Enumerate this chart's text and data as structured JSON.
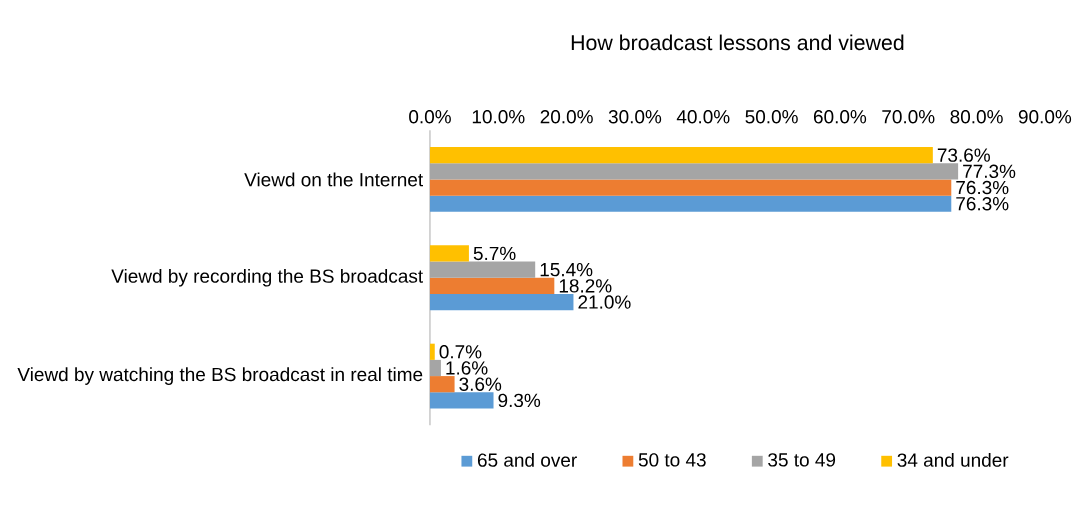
{
  "chart_data": {
    "type": "bar",
    "orientation": "horizontal",
    "title": "How broadcast lessons and viewed",
    "categories": [
      "Viewd on the Internet",
      "Viewd by recording the BS broadcast",
      "Viewd by watching the BS broadcast in real time"
    ],
    "xlim": [
      0,
      90
    ],
    "xticks": [
      {
        "value": 0,
        "label": "0.0%"
      },
      {
        "value": 10,
        "label": "10.0%"
      },
      {
        "value": 20,
        "label": "20.0%"
      },
      {
        "value": 30,
        "label": "30.0%"
      },
      {
        "value": 40,
        "label": "40.0%"
      },
      {
        "value": 50,
        "label": "50.0%"
      },
      {
        "value": 60,
        "label": "60.0%"
      },
      {
        "value": 70,
        "label": "70.0%"
      },
      {
        "value": 80,
        "label": "80.0%"
      },
      {
        "value": 90,
        "label": "90.0%"
      }
    ],
    "legend": "bottom",
    "series": [
      {
        "name": "65 and over",
        "color": "#5b9bd5",
        "values": [
          76.3,
          21.0,
          9.3
        ],
        "value_labels": [
          "76.3%",
          "21.0%",
          "9.3%"
        ]
      },
      {
        "name": "50 to 43",
        "color": "#ed7d31",
        "values": [
          76.3,
          18.2,
          3.6
        ],
        "value_labels": [
          "76.3%",
          "18.2%",
          "3.6%"
        ]
      },
      {
        "name": "35 to 49",
        "color": "#a5a5a5",
        "values": [
          77.3,
          15.4,
          1.6
        ],
        "value_labels": [
          "77.3%",
          "15.4%",
          "1.6%"
        ]
      },
      {
        "name": "34 and under",
        "color": "#ffc000",
        "values": [
          73.6,
          5.7,
          0.7
        ],
        "value_labels": [
          "73.6%",
          "5.7%",
          "0.7%"
        ]
      }
    ]
  }
}
